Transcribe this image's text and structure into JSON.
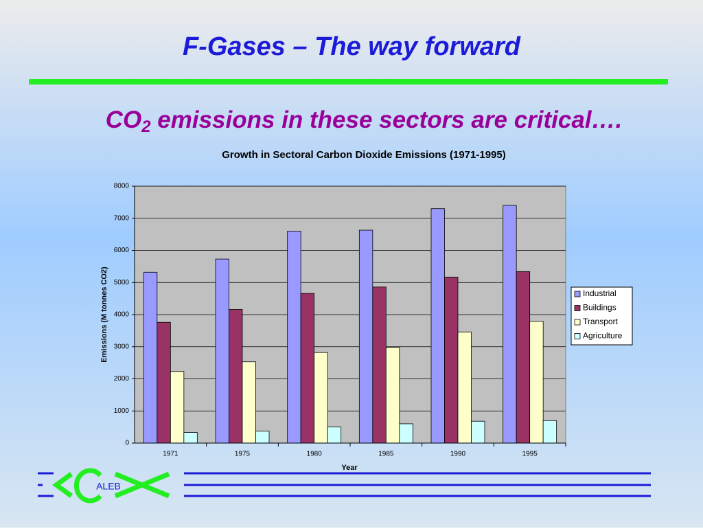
{
  "slide": {
    "title": "F-Gases – The way forward",
    "subtitle": {
      "prefix": "CO",
      "subscript": "2",
      "rest": " emissions in these sectors are critical…."
    },
    "logo_text": "ALEB"
  },
  "chart_data": {
    "type": "bar",
    "title": "Growth in Sectoral Carbon Dioxide Emissions (1971-1995)",
    "x_label": "Year",
    "y_label": "Emissions (M tonnes CO2)",
    "categories": [
      "1971",
      "1975",
      "1980",
      "1985",
      "1990",
      "1995"
    ],
    "series": [
      {
        "name": "Industrial",
        "color": "#9999ff",
        "values": [
          5320,
          5730,
          6600,
          6630,
          7300,
          7400
        ]
      },
      {
        "name": "Buildings",
        "color": "#993366",
        "values": [
          3760,
          4160,
          4660,
          4860,
          5170,
          5340
        ]
      },
      {
        "name": "Transport",
        "color": "#ffffcc",
        "values": [
          2230,
          2530,
          2820,
          2980,
          3460,
          3790
        ]
      },
      {
        "name": "Agriculture",
        "color": "#ccffff",
        "values": [
          330,
          370,
          500,
          600,
          680,
          700
        ]
      }
    ],
    "ylim": [
      0,
      8000
    ],
    "yticks": [
      0,
      1000,
      2000,
      3000,
      4000,
      5000,
      6000,
      7000,
      8000
    ],
    "grid": true,
    "legend": "right"
  }
}
